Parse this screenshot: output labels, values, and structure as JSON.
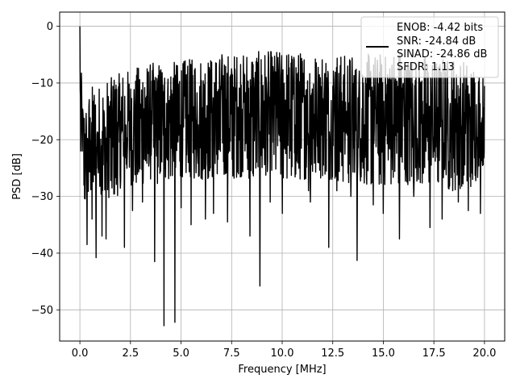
{
  "chart_data": {
    "type": "line",
    "xlabel": "Frequency [MHz]",
    "ylabel": "PSD [dB]",
    "xlim": [
      -1.0,
      21.0
    ],
    "ylim": [
      -55.5,
      2.5
    ],
    "xticks": [
      0.0,
      2.5,
      5.0,
      7.5,
      10.0,
      12.5,
      15.0,
      17.5,
      20.0
    ],
    "xtick_labels": [
      "0.0",
      "2.5",
      "5.0",
      "7.5",
      "10.0",
      "12.5",
      "15.0",
      "17.5",
      "20.0"
    ],
    "yticks": [
      0,
      -10,
      -20,
      -30,
      -40,
      -50
    ],
    "ytick_labels": [
      "0",
      "−10",
      "−20",
      "−30",
      "−40",
      "−50"
    ],
    "grid": true,
    "legend_position": "top-right",
    "line_color": "#000000",
    "legend": {
      "entries": [
        "ENOB: -4.42 bits",
        "SNR: -24.84 dB",
        "SINAD: -24.86 dB",
        "SFDR: 1.13"
      ]
    },
    "series": [
      {
        "x": [
          0.0,
          0.05,
          0.1,
          0.2,
          0.3,
          0.4,
          0.5,
          0.7,
          0.9,
          1.2,
          1.5,
          1.8,
          2.2,
          2.5,
          3.0,
          3.5,
          3.7,
          4.0,
          4.2,
          4.5,
          4.7,
          5.0,
          6.0,
          7.0,
          7.5,
          8.0,
          8.5,
          8.9,
          9.5,
          10.0,
          11.0,
          11.5,
          12.0,
          12.5,
          13.0,
          13.7,
          14.0,
          15.0,
          16.0,
          16.5,
          17.0,
          17.5,
          18.0,
          18.5,
          19.0,
          19.5,
          20.0
        ],
        "peak": [
          0.0,
          -6.0,
          -10.0,
          -14.0,
          -14.0,
          -12.0,
          -11.0,
          -10.0,
          -10.5,
          -10.0,
          -9.0,
          -8.5,
          -8.0,
          -7.5,
          -7.0,
          -6.5,
          -6.0,
          -6.5,
          -6.0,
          -6.5,
          -6.0,
          -6.0,
          -5.5,
          -4.5,
          -5.0,
          -4.5,
          -4.0,
          -4.5,
          -4.0,
          -4.0,
          -4.5,
          -4.0,
          -4.5,
          -4.0,
          -5.0,
          -5.0,
          -5.0,
          -4.5,
          -4.0,
          -4.5,
          -5.0,
          -5.0,
          -5.5,
          -5.5,
          -6.0,
          -7.0,
          -9.0
        ],
        "floor": [
          -20.0,
          -22.0,
          -27.0,
          -31.0,
          -33.0,
          -32.0,
          -30.0,
          -29.0,
          -30.0,
          -31.0,
          -30.0,
          -30.0,
          -29.0,
          -28.0,
          -28.0,
          -27.0,
          -28.0,
          -27.5,
          -27.0,
          -27.0,
          -27.0,
          -26.5,
          -27.0,
          -27.0,
          -27.0,
          -26.5,
          -27.0,
          -27.0,
          -27.0,
          -27.0,
          -27.0,
          -27.0,
          -27.0,
          -27.0,
          -27.5,
          -28.0,
          -28.0,
          -28.0,
          -28.0,
          -28.0,
          -28.0,
          -28.5,
          -29.0,
          -29.0,
          -29.0,
          -28.0,
          -24.0
        ]
      }
    ],
    "dips": [
      {
        "x": 0.05,
        "y": -22.0
      },
      {
        "x": 0.35,
        "y": -38.5
      },
      {
        "x": 0.6,
        "y": -34.0
      },
      {
        "x": 0.8,
        "y": -40.8
      },
      {
        "x": 1.1,
        "y": -37.0
      },
      {
        "x": 1.3,
        "y": -37.5
      },
      {
        "x": 2.2,
        "y": -39.0
      },
      {
        "x": 2.6,
        "y": -32.5
      },
      {
        "x": 3.1,
        "y": -31.0
      },
      {
        "x": 3.7,
        "y": -41.5
      },
      {
        "x": 4.15,
        "y": -52.8
      },
      {
        "x": 4.7,
        "y": -52.2
      },
      {
        "x": 5.0,
        "y": -32.0
      },
      {
        "x": 5.5,
        "y": -35.0
      },
      {
        "x": 6.2,
        "y": -34.0
      },
      {
        "x": 6.6,
        "y": -33.0
      },
      {
        "x": 7.3,
        "y": -34.5
      },
      {
        "x": 8.4,
        "y": -37.0
      },
      {
        "x": 8.9,
        "y": -45.8
      },
      {
        "x": 9.4,
        "y": -31.0
      },
      {
        "x": 10.0,
        "y": -33.0
      },
      {
        "x": 11.3,
        "y": -29.0
      },
      {
        "x": 11.4,
        "y": -31.0
      },
      {
        "x": 12.3,
        "y": -39.0
      },
      {
        "x": 12.7,
        "y": -29.0
      },
      {
        "x": 13.4,
        "y": -30.0
      },
      {
        "x": 13.7,
        "y": -41.3
      },
      {
        "x": 14.5,
        "y": -31.5
      },
      {
        "x": 15.0,
        "y": -33.0
      },
      {
        "x": 15.8,
        "y": -37.5
      },
      {
        "x": 16.5,
        "y": -30.0
      },
      {
        "x": 17.3,
        "y": -35.5
      },
      {
        "x": 17.9,
        "y": -34.0
      },
      {
        "x": 18.7,
        "y": -31.0
      },
      {
        "x": 19.2,
        "y": -32.5
      },
      {
        "x": 19.8,
        "y": -33.0
      }
    ]
  }
}
